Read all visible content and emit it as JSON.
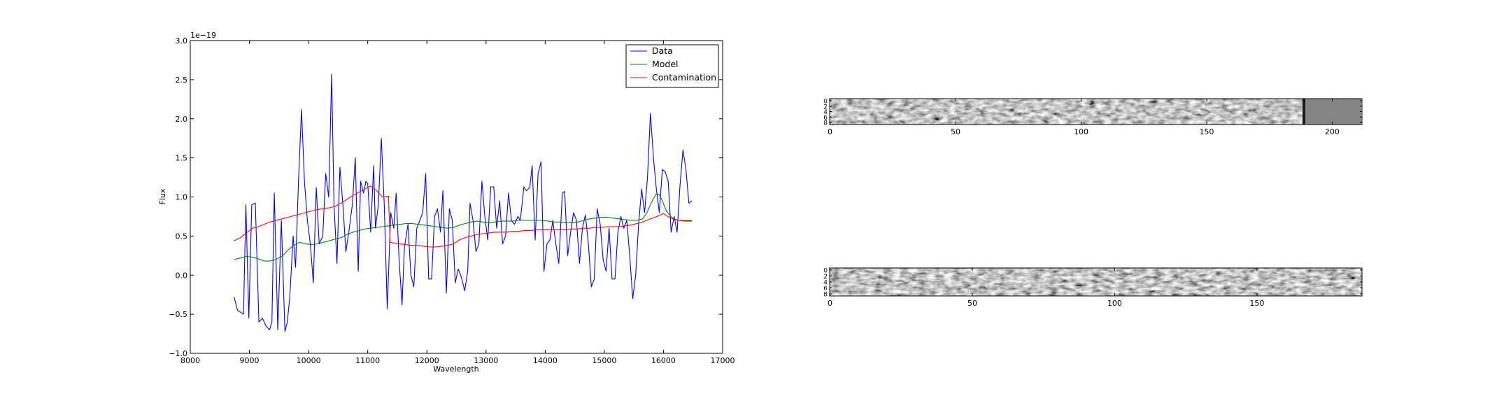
{
  "chart_data": [
    {
      "type": "line",
      "xlabel": "Wavelength",
      "ylabel": "Flux",
      "offset_label": "1e−19",
      "xlim": [
        8000,
        17000
      ],
      "ylim": [
        -1.0,
        3.0
      ],
      "xticks": [
        8000,
        9000,
        10000,
        11000,
        12000,
        13000,
        14000,
        15000,
        16000,
        17000
      ],
      "xtick_labels": [
        "8000",
        "9000",
        "10000",
        "11000",
        "12000",
        "13000",
        "14000",
        "15000",
        "16000",
        "17000"
      ],
      "yticks": [
        -1.0,
        -0.5,
        0.0,
        0.5,
        1.0,
        1.5,
        2.0,
        2.5,
        3.0
      ],
      "ytick_labels": [
        "−1.0",
        "−0.5",
        "0.0",
        "0.5",
        "1.0",
        "1.5",
        "2.0",
        "2.5",
        "3.0"
      ],
      "legend": "top-right",
      "grid": false,
      "series": [
        {
          "name": "Data",
          "color": "#0000ff",
          "x": [
            8740,
            8800,
            8900,
            8940,
            8990,
            9040,
            9100,
            9160,
            9220,
            9280,
            9340,
            9380,
            9420,
            9480,
            9540,
            9600,
            9640,
            9680,
            9740,
            9780,
            9830,
            9880,
            9930,
            9980,
            10030,
            10080,
            10130,
            10180,
            10240,
            10290,
            10340,
            10390,
            10430,
            10480,
            10530,
            10580,
            10630,
            10680,
            10740,
            10790,
            10840,
            10880,
            10930,
            10970,
            11000,
            11050,
            11100,
            11130,
            11180,
            11230,
            11280,
            11330,
            11390,
            11440,
            11480,
            11530,
            11580,
            11620,
            11680,
            11730,
            11780,
            11830,
            11880,
            11930,
            11980,
            12030,
            12080,
            12130,
            12180,
            12230,
            12270,
            12330,
            12380,
            12430,
            12480,
            12530,
            12580,
            12640,
            12690,
            12730,
            12780,
            12830,
            12880,
            12930,
            12980,
            13030,
            13080,
            13130,
            13180,
            13230,
            13280,
            13330,
            13380,
            13430,
            13480,
            13540,
            13580,
            13640,
            13680,
            13740,
            13780,
            13830,
            13880,
            13930,
            13980,
            14030,
            14080,
            14130,
            14180,
            14230,
            14290,
            14330,
            14380,
            14430,
            14480,
            14530,
            14580,
            14630,
            14680,
            14730,
            14780,
            14830,
            14880,
            14930,
            14980,
            15030,
            15080,
            15130,
            15180,
            15230,
            15280,
            15330,
            15380,
            15430,
            15480,
            15530,
            15580,
            15630,
            15680,
            15730,
            15780,
            15830,
            15880,
            15930,
            15980,
            16030,
            16080,
            16130,
            16180,
            16230,
            16280,
            16330,
            16380,
            16430,
            16480
          ],
          "y": [
            -0.28,
            -0.45,
            -0.5,
            0.9,
            -0.55,
            0.9,
            0.92,
            -0.6,
            -0.55,
            -0.65,
            -0.7,
            -0.6,
            1.05,
            -0.7,
            0.7,
            -0.72,
            -0.6,
            -0.3,
            0.5,
            0.1,
            1.2,
            2.12,
            1.2,
            0.7,
            0.4,
            -0.1,
            1.12,
            0.4,
            0.5,
            1.3,
            1.0,
            2.57,
            0.9,
            0.15,
            1.38,
            0.9,
            0.3,
            0.55,
            0.9,
            1.5,
            0.05,
            1.2,
            1.05,
            1.2,
            1.17,
            0.55,
            1.4,
            0.6,
            0.9,
            1.75,
            0.9,
            -0.43,
            0.8,
            0.6,
            1.05,
            0.2,
            -0.38,
            0.35,
            0.65,
            0.0,
            -0.15,
            0.6,
            0.7,
            0.8,
            1.3,
            -0.05,
            -0.05,
            0.75,
            0.85,
            0.55,
            1.08,
            -0.23,
            0.85,
            0.7,
            -0.1,
            0.08,
            -0.02,
            -0.2,
            0.05,
            0.92,
            0.7,
            0.3,
            0.4,
            1.2,
            0.75,
            0.45,
            1.13,
            1.13,
            0.6,
            0.95,
            0.4,
            0.5,
            1.05,
            0.7,
            0.65,
            0.75,
            0.7,
            1.13,
            1.08,
            1.12,
            1.4,
            0.45,
            1.3,
            1.45,
            0.05,
            0.4,
            0.45,
            0.7,
            0.4,
            0.15,
            1.05,
            1.07,
            0.25,
            0.55,
            0.8,
            0.7,
            0.15,
            0.6,
            0.77,
            0.4,
            -0.15,
            -0.05,
            0.85,
            0.65,
            0.2,
            0.05,
            0.6,
            -0.05,
            -0.05,
            0.55,
            0.75,
            0.6,
            0.7,
            0.25,
            -0.3,
            0.0,
            0.65,
            1.1,
            0.8,
            1.25,
            2.07,
            1.5,
            1.1,
            0.8,
            1.35,
            1.32,
            1.2,
            0.55,
            0.75,
            0.55,
            1.15,
            1.6,
            1.35,
            0.92,
            0.95
          ]
        },
        {
          "name": "Model",
          "color": "#008000",
          "x": [
            8740,
            8850,
            8950,
            9050,
            9150,
            9250,
            9350,
            9450,
            9550,
            9650,
            9750,
            9850,
            9950,
            10050,
            10150,
            10250,
            10350,
            10450,
            10550,
            10650,
            10750,
            10850,
            10950,
            11050,
            11150,
            11250,
            11350,
            11450,
            11550,
            11650,
            11750,
            11850,
            11950,
            12050,
            12150,
            12250,
            12350,
            12450,
            12550,
            12650,
            12750,
            12850,
            12950,
            13050,
            13150,
            13250,
            13350,
            13450,
            13550,
            13650,
            13750,
            13850,
            13950,
            14050,
            14150,
            14250,
            14350,
            14450,
            14550,
            14650,
            14750,
            14850,
            14950,
            15050,
            15150,
            15250,
            15350,
            15450,
            15550,
            15650,
            15720,
            15780,
            15830,
            15880,
            15930,
            15980,
            16050,
            16150,
            16250,
            16350,
            16480
          ],
          "y": [
            0.2,
            0.22,
            0.24,
            0.23,
            0.21,
            0.18,
            0.18,
            0.2,
            0.24,
            0.32,
            0.38,
            0.42,
            0.4,
            0.39,
            0.4,
            0.42,
            0.44,
            0.46,
            0.48,
            0.52,
            0.55,
            0.57,
            0.59,
            0.6,
            0.61,
            0.62,
            0.63,
            0.64,
            0.65,
            0.66,
            0.66,
            0.65,
            0.64,
            0.63,
            0.62,
            0.61,
            0.6,
            0.61,
            0.64,
            0.66,
            0.68,
            0.69,
            0.68,
            0.67,
            0.68,
            0.69,
            0.69,
            0.69,
            0.7,
            0.7,
            0.7,
            0.7,
            0.7,
            0.69,
            0.68,
            0.68,
            0.67,
            0.67,
            0.68,
            0.7,
            0.72,
            0.73,
            0.74,
            0.74,
            0.73,
            0.72,
            0.71,
            0.7,
            0.7,
            0.72,
            0.8,
            0.9,
            0.98,
            1.04,
            1.03,
            0.95,
            0.82,
            0.73,
            0.7,
            0.7,
            0.7
          ]
        },
        {
          "name": "Contamination",
          "color": "#ff0000",
          "x": [
            8740,
            8850,
            8950,
            9050,
            9150,
            9250,
            9350,
            9450,
            9550,
            9650,
            9750,
            9850,
            9950,
            10050,
            10150,
            10250,
            10350,
            10450,
            10550,
            10650,
            10750,
            10850,
            10950,
            11050,
            11150,
            11250,
            11350,
            11380,
            11450,
            11550,
            11650,
            11750,
            11850,
            11950,
            12050,
            12150,
            12250,
            12350,
            12450,
            12550,
            12650,
            12750,
            12850,
            12950,
            13050,
            13150,
            13250,
            13350,
            13450,
            13550,
            13650,
            13750,
            13850,
            13950,
            14050,
            14150,
            14250,
            14350,
            14450,
            14550,
            14650,
            14750,
            14850,
            14950,
            15050,
            15150,
            15250,
            15350,
            15450,
            15550,
            15650,
            15750,
            15850,
            15950,
            16000,
            16050,
            16150,
            16250,
            16350,
            16480
          ],
          "y": [
            0.44,
            0.48,
            0.54,
            0.6,
            0.62,
            0.65,
            0.68,
            0.7,
            0.72,
            0.74,
            0.76,
            0.78,
            0.8,
            0.82,
            0.84,
            0.85,
            0.86,
            0.88,
            0.92,
            0.97,
            1.02,
            1.06,
            1.1,
            1.14,
            1.08,
            1.0,
            1.01,
            0.42,
            0.41,
            0.4,
            0.39,
            0.38,
            0.38,
            0.37,
            0.36,
            0.36,
            0.37,
            0.38,
            0.4,
            0.45,
            0.48,
            0.5,
            0.52,
            0.53,
            0.54,
            0.55,
            0.55,
            0.55,
            0.56,
            0.56,
            0.57,
            0.57,
            0.58,
            0.58,
            0.58,
            0.58,
            0.58,
            0.58,
            0.59,
            0.59,
            0.6,
            0.6,
            0.61,
            0.61,
            0.62,
            0.62,
            0.62,
            0.63,
            0.64,
            0.66,
            0.68,
            0.71,
            0.74,
            0.77,
            0.79,
            0.76,
            0.72,
            0.7,
            0.69,
            0.69
          ]
        }
      ]
    },
    {
      "type": "heatmap",
      "colormap": "gray",
      "xlim": [
        0,
        212
      ],
      "ylim": [
        0,
        9
      ],
      "xticks": [
        0,
        50,
        100,
        150,
        200
      ],
      "xtick_labels": [
        "0",
        "50",
        "100",
        "150",
        "200"
      ],
      "ytick_labels": [
        "0",
        "2",
        "4",
        "6",
        "8"
      ],
      "note_region": "columns 190–212 are a flat mid-gray"
    },
    {
      "type": "heatmap",
      "colormap": "gray",
      "xlim": [
        0,
        187
      ],
      "ylim": [
        0,
        9
      ],
      "xticks": [
        0,
        50,
        100,
        150
      ],
      "xtick_labels": [
        "0",
        "50",
        "100",
        "150"
      ],
      "ytick_labels": [
        "0",
        "2",
        "4",
        "6",
        "8"
      ]
    }
  ]
}
